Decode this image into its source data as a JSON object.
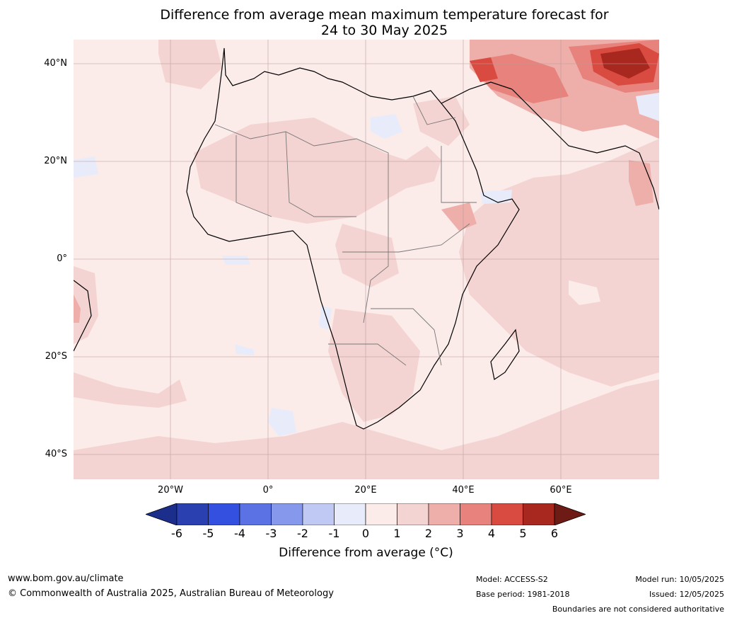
{
  "title_line1": "Difference from average mean maximum temperature forecast for",
  "title_line2": "24 to 30 May 2025",
  "lat_labels": [
    "40°N",
    "20°N",
    "0°",
    "20°S",
    "40°S"
  ],
  "lon_labels": [
    "20°W",
    "0°",
    "20°E",
    "40°E",
    "60°E"
  ],
  "colorbar": {
    "ticks": [
      "-6",
      "-5",
      "-4",
      "-3",
      "-2",
      "-1",
      "0",
      "1",
      "2",
      "3",
      "4",
      "5",
      "6"
    ],
    "colors": [
      "#1c2e8c",
      "#2a3fb0",
      "#3350e0",
      "#5a72e4",
      "#8698ec",
      "#c0c8f4",
      "#e8ecfa",
      "#fbebe9",
      "#f4d4d2",
      "#eeafaa",
      "#e7837c",
      "#d94b40",
      "#a8281f",
      "#6e1a15"
    ],
    "label": "Difference from average (°C)"
  },
  "footer": {
    "website": "www.bom.gov.au/climate",
    "copyright": "© Commonwealth of Australia 2025, Australian Bureau of Meteorology",
    "model": "Model: ACCESS-S2",
    "base_period": "Base period: 1981-2018",
    "model_run": "Model run: 10/05/2025",
    "issued": "Issued: 12/05/2025",
    "boundaries": "Boundaries are not considered authoritative"
  }
}
